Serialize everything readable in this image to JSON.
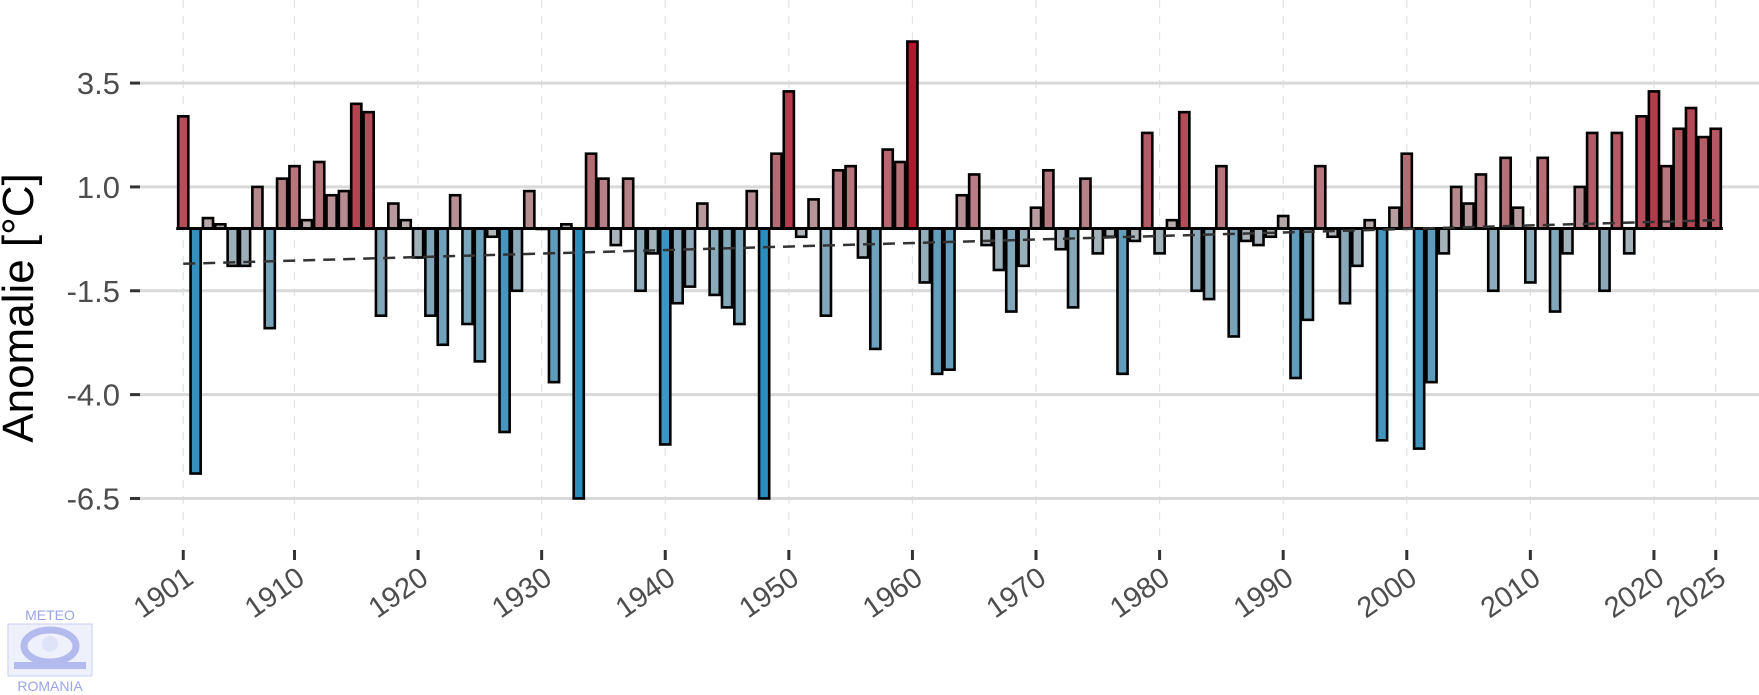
{
  "chart_data": {
    "type": "bar",
    "ylabel": "Anomalie [°C]",
    "ylim": [
      -7.5,
      5.5
    ],
    "xlim": [
      1897.5,
      2028.5
    ],
    "yticks": [
      3.5,
      1.0,
      -1.5,
      -4.0,
      -6.5
    ],
    "ytick_labels": [
      "3.5",
      "1.0",
      "-1.5",
      "-4.0",
      "-6.5"
    ],
    "xticks": [
      1901,
      1910,
      1920,
      1930,
      1940,
      1950,
      1960,
      1970,
      1980,
      1990,
      2000,
      2010,
      2020,
      2025
    ],
    "xtick_labels": [
      "1901",
      "1910",
      "1920",
      "1930",
      "1940",
      "1950",
      "1960",
      "1970",
      "1980",
      "1990",
      "2000",
      "2010",
      "2020",
      "2025"
    ],
    "grid": true,
    "colors": {
      "warm": "#b2182b",
      "cold": "#2b8cbe",
      "neutral": "#b8b8b8",
      "grid": "#d9d9d9",
      "trend": "#333333"
    },
    "trend": {
      "x": [
        1901,
        2025
      ],
      "y": [
        -0.85,
        0.2
      ]
    },
    "series": [
      {
        "x": [
          1901,
          1902,
          1903,
          1904,
          1905,
          1906,
          1907,
          1908,
          1909,
          1910,
          1911,
          1912,
          1913,
          1914,
          1915,
          1916,
          1917,
          1918,
          1919,
          1920,
          1921,
          1922,
          1923,
          1924,
          1925,
          1926,
          1927,
          1928,
          1929,
          1930,
          1931,
          1932,
          1933,
          1934,
          1935,
          1936,
          1937,
          1938,
          1939,
          1940,
          1941,
          1942,
          1943,
          1944,
          1945,
          1946,
          1947,
          1948,
          1949,
          1950,
          1951,
          1952,
          1953,
          1954,
          1955,
          1956,
          1957,
          1958,
          1959,
          1960,
          1961,
          1962,
          1963,
          1964,
          1965,
          1966,
          1967,
          1968,
          1969,
          1970,
          1971,
          1972,
          1973,
          1974,
          1975,
          1976,
          1977,
          1978,
          1979,
          1980,
          1981,
          1982,
          1983,
          1984,
          1985,
          1986,
          1987,
          1988,
          1989,
          1990,
          1991,
          1992,
          1993,
          1994,
          1995,
          1996,
          1997,
          1998,
          1999,
          2000,
          2001,
          2002,
          2003,
          2004,
          2005,
          2006,
          2007,
          2008,
          2009,
          2010,
          2011,
          2012,
          2013,
          2014,
          2015,
          2016,
          2017,
          2018,
          2019,
          2020,
          2021,
          2022,
          2023,
          2024,
          2025
        ],
        "values": [
          2.7,
          -5.9,
          0.25,
          0.1,
          -0.9,
          -0.9,
          1.0,
          -2.4,
          1.2,
          1.5,
          0.2,
          1.6,
          0.8,
          0.9,
          3.0,
          2.8,
          -2.1,
          0.6,
          0.2,
          -0.7,
          -2.1,
          -2.8,
          0.8,
          -2.3,
          -3.2,
          -0.2,
          -4.9,
          -1.5,
          0.9,
          0.0,
          -3.7,
          0.1,
          -6.5,
          1.8,
          1.2,
          -0.4,
          1.2,
          -1.5,
          -0.6,
          -5.2,
          -1.8,
          -1.4,
          0.6,
          -1.6,
          -1.9,
          -2.3,
          0.9,
          -6.5,
          1.8,
          3.3,
          -0.2,
          0.7,
          -2.1,
          1.4,
          1.5,
          -0.7,
          -2.9,
          1.9,
          1.6,
          4.5,
          -1.3,
          -3.5,
          -3.4,
          0.8,
          1.3,
          -0.4,
          -1.0,
          -2.0,
          -0.9,
          0.5,
          1.4,
          -0.5,
          -1.9,
          1.2,
          -0.6,
          -0.2,
          -3.5,
          -0.3,
          2.3,
          -0.6,
          0.2,
          2.8,
          -1.5,
          -1.7,
          1.5,
          -2.6,
          -0.3,
          -0.4,
          -0.2,
          0.3,
          -3.6,
          -2.2,
          1.5,
          -0.2,
          -1.8,
          -0.9,
          0.2,
          -5.1,
          0.5,
          1.8,
          -5.3,
          -3.7,
          -0.6,
          1.0,
          0.6,
          1.3,
          -1.5,
          1.7,
          0.5,
          -1.3,
          1.7,
          -2.0,
          -0.6,
          1.0,
          2.3,
          -1.5,
          2.3,
          -0.6,
          2.7,
          3.3,
          1.5,
          2.4,
          2.9,
          2.2,
          2.4
        ]
      }
    ]
  },
  "logo": {
    "top_text": "METEO",
    "bottom_text": "ROMANIA"
  }
}
